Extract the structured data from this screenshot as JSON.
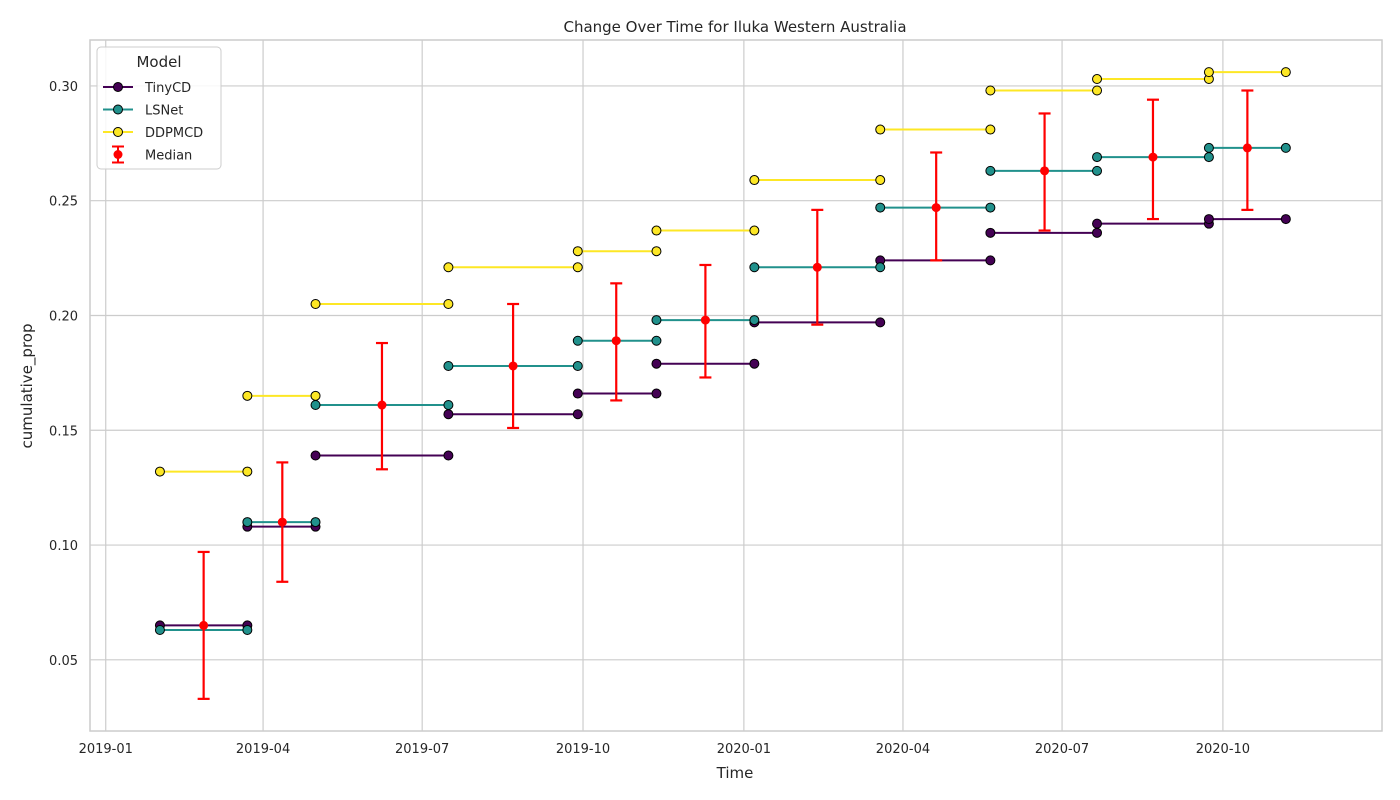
{
  "chart_data": {
    "type": "line",
    "title": "Change Over Time for Iluka Western Australia",
    "xlabel": "Time",
    "ylabel": "cumulative_prop",
    "x_tick_labels": [
      "2019-01",
      "2019-04",
      "2019-07",
      "2019-10",
      "2020-01",
      "2020-04",
      "2020-07",
      "2020-10"
    ],
    "y_tick_labels": [
      "0.05",
      "0.10",
      "0.15",
      "0.20",
      "0.25",
      "0.30"
    ],
    "y_ticks": [
      0.05,
      0.1,
      0.15,
      0.2,
      0.25,
      0.3
    ],
    "ylim": [
      0.019,
      0.32
    ],
    "xlim": [
      "2018-12-23",
      "2020-12-31"
    ],
    "grid": true,
    "legend": {
      "title": "Model",
      "placement": "top-left"
    },
    "series": [
      {
        "name": "TinyCD",
        "color": "#440154",
        "segments": [
          [
            [
              "2019-02-01",
              0.065
            ],
            [
              "2019-03-23",
              0.065
            ]
          ],
          [
            [
              "2019-03-23",
              0.108
            ],
            [
              "2019-05-01",
              0.108
            ]
          ],
          [
            [
              "2019-05-01",
              0.139
            ],
            [
              "2019-07-16",
              0.139
            ]
          ],
          [
            [
              "2019-07-16",
              0.157
            ],
            [
              "2019-09-28",
              0.157
            ]
          ],
          [
            [
              "2019-09-28",
              0.166
            ],
            [
              "2019-11-12",
              0.166
            ]
          ],
          [
            [
              "2019-11-12",
              0.179
            ],
            [
              "2020-01-07",
              0.179
            ]
          ],
          [
            [
              "2020-01-07",
              0.197
            ],
            [
              "2020-03-19",
              0.197
            ]
          ],
          [
            [
              "2020-03-19",
              0.224
            ],
            [
              "2020-05-21",
              0.224
            ]
          ],
          [
            [
              "2020-05-21",
              0.236
            ],
            [
              "2020-07-21",
              0.236
            ]
          ],
          [
            [
              "2020-07-21",
              0.24
            ],
            [
              "2020-09-23",
              0.24
            ]
          ],
          [
            [
              "2020-09-23",
              0.242
            ],
            [
              "2020-11-06",
              0.242
            ]
          ]
        ]
      },
      {
        "name": "LSNet",
        "color": "#21918c",
        "segments": [
          [
            [
              "2019-02-01",
              0.063
            ],
            [
              "2019-03-23",
              0.063
            ]
          ],
          [
            [
              "2019-03-23",
              0.11
            ],
            [
              "2019-05-01",
              0.11
            ]
          ],
          [
            [
              "2019-05-01",
              0.161
            ],
            [
              "2019-07-16",
              0.161
            ]
          ],
          [
            [
              "2019-07-16",
              0.178
            ],
            [
              "2019-09-28",
              0.178
            ]
          ],
          [
            [
              "2019-09-28",
              0.189
            ],
            [
              "2019-11-12",
              0.189
            ]
          ],
          [
            [
              "2019-11-12",
              0.198
            ],
            [
              "2020-01-07",
              0.198
            ]
          ],
          [
            [
              "2020-01-07",
              0.221
            ],
            [
              "2020-03-19",
              0.221
            ]
          ],
          [
            [
              "2020-03-19",
              0.247
            ],
            [
              "2020-05-21",
              0.247
            ]
          ],
          [
            [
              "2020-05-21",
              0.263
            ],
            [
              "2020-07-21",
              0.263
            ]
          ],
          [
            [
              "2020-07-21",
              0.269
            ],
            [
              "2020-09-23",
              0.269
            ]
          ],
          [
            [
              "2020-09-23",
              0.273
            ],
            [
              "2020-11-06",
              0.273
            ]
          ]
        ]
      },
      {
        "name": "DDPMCD",
        "color": "#fde725",
        "segments": [
          [
            [
              "2019-02-01",
              0.132
            ],
            [
              "2019-03-23",
              0.132
            ]
          ],
          [
            [
              "2019-03-23",
              0.165
            ],
            [
              "2019-05-01",
              0.165
            ]
          ],
          [
            [
              "2019-05-01",
              0.205
            ],
            [
              "2019-07-16",
              0.205
            ]
          ],
          [
            [
              "2019-07-16",
              0.221
            ],
            [
              "2019-09-28",
              0.221
            ]
          ],
          [
            [
              "2019-09-28",
              0.228
            ],
            [
              "2019-11-12",
              0.228
            ]
          ],
          [
            [
              "2019-11-12",
              0.237
            ],
            [
              "2020-01-07",
              0.237
            ]
          ],
          [
            [
              "2020-01-07",
              0.259
            ],
            [
              "2020-03-19",
              0.259
            ]
          ],
          [
            [
              "2020-03-19",
              0.281
            ],
            [
              "2020-05-21",
              0.281
            ]
          ],
          [
            [
              "2020-05-21",
              0.298
            ],
            [
              "2020-07-21",
              0.298
            ]
          ],
          [
            [
              "2020-07-21",
              0.303
            ],
            [
              "2020-09-23",
              0.303
            ]
          ],
          [
            [
              "2020-09-23",
              0.306
            ],
            [
              "2020-11-06",
              0.306
            ]
          ]
        ]
      },
      {
        "name": "Median",
        "color": "#ff0000",
        "kind": "errorbar",
        "points": [
          {
            "x": "2019-02-26",
            "y": 0.065,
            "low": 0.033,
            "high": 0.097
          },
          {
            "x": "2019-04-12",
            "y": 0.11,
            "low": 0.084,
            "high": 0.136
          },
          {
            "x": "2019-06-08",
            "y": 0.161,
            "low": 0.133,
            "high": 0.188
          },
          {
            "x": "2019-08-22",
            "y": 0.178,
            "low": 0.151,
            "high": 0.205
          },
          {
            "x": "2019-10-20",
            "y": 0.189,
            "low": 0.163,
            "high": 0.214
          },
          {
            "x": "2019-12-10",
            "y": 0.198,
            "low": 0.173,
            "high": 0.222
          },
          {
            "x": "2020-02-12",
            "y": 0.221,
            "low": 0.196,
            "high": 0.246
          },
          {
            "x": "2020-04-20",
            "y": 0.247,
            "low": 0.224,
            "high": 0.271
          },
          {
            "x": "2020-06-21",
            "y": 0.263,
            "low": 0.237,
            "high": 0.288
          },
          {
            "x": "2020-08-22",
            "y": 0.269,
            "low": 0.242,
            "high": 0.294
          },
          {
            "x": "2020-10-15",
            "y": 0.273,
            "low": 0.246,
            "high": 0.298
          }
        ]
      }
    ]
  }
}
